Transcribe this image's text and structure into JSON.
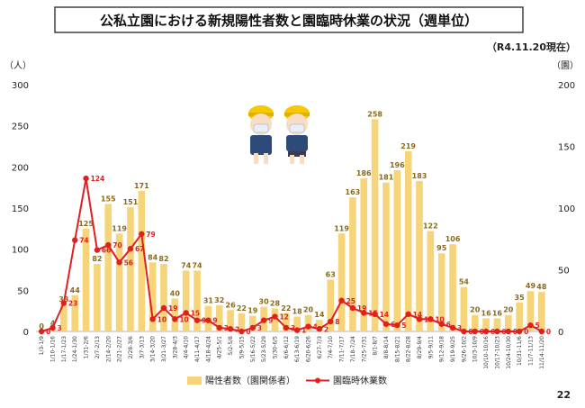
{
  "title": "公私立園における新規陽性者数と園臨時休業の状況（週単位）",
  "as_of": "（R4.11.20現在）",
  "page_number": "22",
  "colors": {
    "bar": "#f6d57a",
    "line": "#e02020",
    "bar_label": "#8a6a1a",
    "line_label": "#e02020",
    "title_border": "#333333"
  },
  "chart_data": {
    "type": "bar",
    "categories": [
      "1/3-1/9",
      "1/10-1/16",
      "1/17-1/23",
      "1/24-1/30",
      "1/31-2/6",
      "2/7-2/13",
      "2/14-2/20",
      "2/21-2/27",
      "2/28-3/6",
      "3/7-3/13",
      "3/14-3/20",
      "3/21-3/27",
      "3/28-4/3",
      "4/4-4/10",
      "4/11-4/17",
      "4/18-4/24",
      "4/25-5/1",
      "5/2-5/8",
      "5/9-5/15",
      "5/16-5/22",
      "5/23-5/29",
      "5/30-6/5",
      "6/6-6/12",
      "6/13-6/19",
      "6/20-6/26",
      "6/27-7/3",
      "7/4-7/10",
      "7/11-7/17",
      "7/18-7/24",
      "7/25-7/31",
      "8/1-8/7",
      "8/8-8/14",
      "8/15-8/21",
      "8/22-8/28",
      "8/29-9/4",
      "9/5-9/11",
      "9/12-9/18",
      "9/19-9/25",
      "9/26-10/2",
      "10/3-10/9",
      "10/10-10/16",
      "10/17-10/23",
      "10/24-10/30",
      "10/31-11/6",
      "11/7-11/13",
      "11/14-11/20"
    ],
    "series": [
      {
        "name": "陽性者数（園関係者）",
        "axis": "left",
        "type": "bar",
        "values": [
          0,
          4,
          33,
          44,
          125,
          82,
          155,
          119,
          151,
          171,
          84,
          82,
          40,
          74,
          74,
          31,
          32,
          26,
          22,
          19,
          30,
          28,
          22,
          18,
          20,
          14,
          63,
          119,
          163,
          186,
          258,
          181,
          196,
          219,
          183,
          122,
          95,
          106,
          54,
          20,
          16,
          16,
          20,
          35,
          49,
          48
        ]
      },
      {
        "name": "園臨時休業数",
        "axis": "right",
        "type": "line",
        "values": [
          0,
          3,
          23,
          74,
          124,
          66,
          70,
          56,
          67,
          79,
          10,
          19,
          10,
          15,
          9,
          9,
          3,
          2,
          0,
          3,
          9,
          12,
          3,
          1,
          4,
          2,
          8,
          25,
          19,
          15,
          14,
          6,
          5,
          14,
          10,
          10,
          6,
          3,
          0,
          0,
          0,
          0,
          0,
          0,
          5,
          0
        ]
      }
    ],
    "y_left": {
      "unit": "（人）",
      "ylim": [
        0,
        300
      ],
      "ticks": [
        "0",
        "50",
        "100",
        "150",
        "200",
        "250",
        "300"
      ]
    },
    "y_right": {
      "unit": "（園）",
      "ylim": [
        0,
        200
      ],
      "ticks": [
        "0",
        "50",
        "100",
        "150",
        "200"
      ]
    },
    "grid": false,
    "legend_position": "bottom"
  }
}
